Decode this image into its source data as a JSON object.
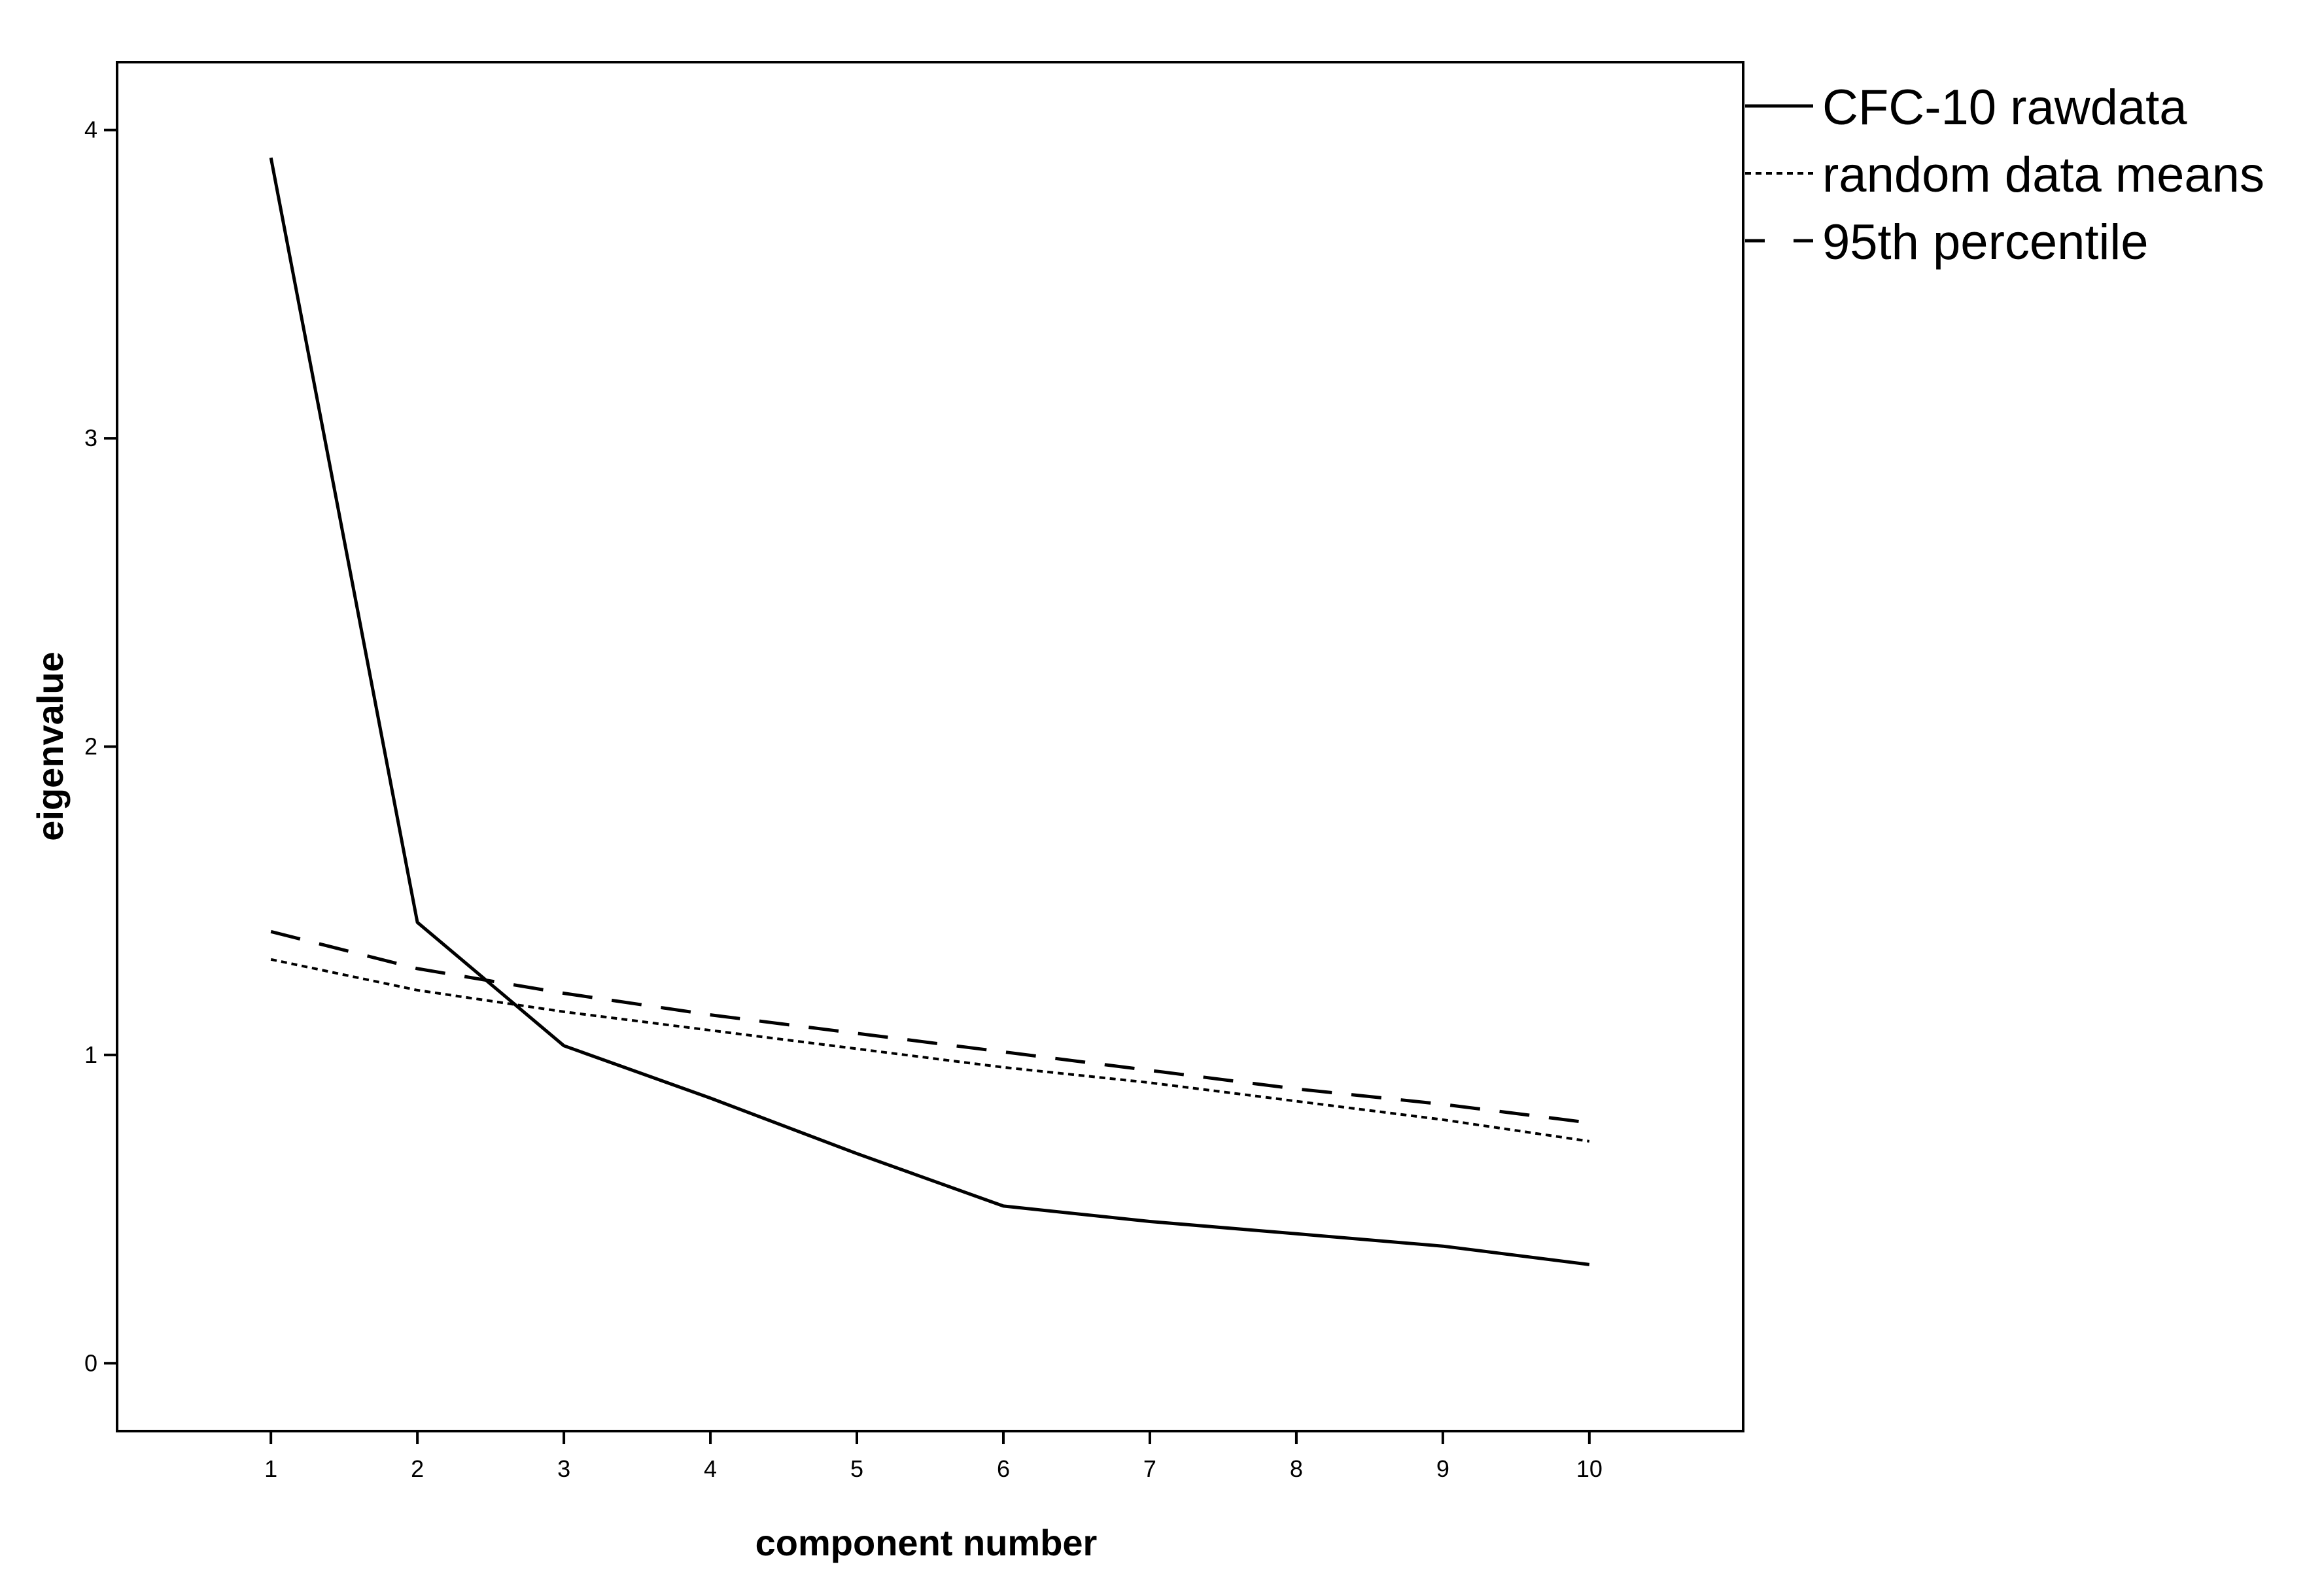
{
  "chart_data": {
    "type": "line",
    "title": "",
    "xlabel": "component number",
    "ylabel": "eigenvalue",
    "x": [
      1,
      2,
      3,
      4,
      5,
      6,
      7,
      8,
      9,
      10
    ],
    "xticks": [
      "1",
      "2",
      "3",
      "4",
      "5",
      "6",
      "7",
      "8",
      "9",
      "10"
    ],
    "xlim": [
      -0.05,
      11.05
    ],
    "yticks": [
      "0",
      "1",
      "2",
      "3",
      "4"
    ],
    "ylim": [
      -0.22,
      4.22
    ],
    "grid": false,
    "legend_position": "top-right outside",
    "series": [
      {
        "name": "CFC-10 rawdata",
        "style": "solid",
        "values": [
          3.91,
          1.43,
          1.03,
          0.86,
          0.68,
          0.51,
          0.46,
          0.42,
          0.38,
          0.32
        ]
      },
      {
        "name": "random data means",
        "style": "dotted",
        "values": [
          1.31,
          1.21,
          1.14,
          1.08,
          1.02,
          0.96,
          0.91,
          0.85,
          0.79,
          0.72
        ]
      },
      {
        "name": "95th percentile",
        "style": "dashed",
        "values": [
          1.4,
          1.28,
          1.2,
          1.13,
          1.07,
          1.01,
          0.95,
          0.89,
          0.84,
          0.78
        ]
      }
    ]
  }
}
